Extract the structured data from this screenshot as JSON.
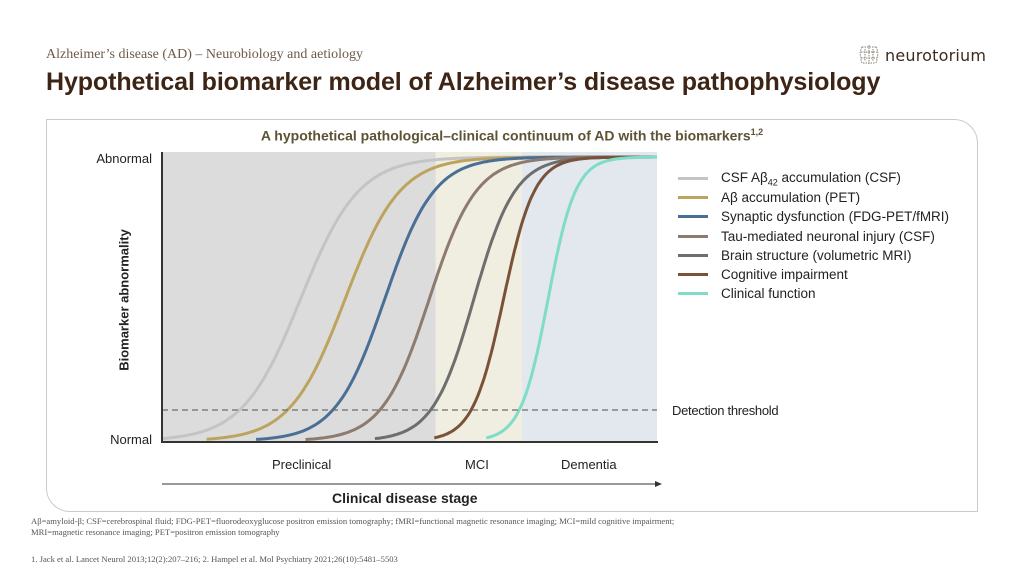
{
  "header": {
    "subtitle": "Alzheimer’s disease (AD) – Neurobiology and aetiology",
    "title": "Hypothetical biomarker model of Alzheimer’s disease pathophysiology",
    "logo_text": "neurotorium",
    "logo_icon": "brain-icon"
  },
  "chart_data": {
    "type": "line",
    "title": "A hypothetical pathological–clinical continuum of AD with the biomarkers",
    "title_superscript": "1,2",
    "xlabel": "Clinical disease stage",
    "ylabel": "Biomarker abnormality",
    "y_ticks": [
      "Normal",
      "Abnormal"
    ],
    "stages": [
      {
        "label": "Preclinical",
        "x_start": 0,
        "x_end": 0.553,
        "color": "#dcdcdc"
      },
      {
        "label": "MCI",
        "x_start": 0.553,
        "x_end": 0.727,
        "color": "#f0ede1"
      },
      {
        "label": "Dementia",
        "x_start": 0.727,
        "x_end": 1.0,
        "color": "#e3e7ee"
      }
    ],
    "threshold": {
      "label": "Detection threshold",
      "y": 0.11
    },
    "series": [
      {
        "name": "CSF Aβ42 accumulation (CSF)",
        "color": "#c4c4c4",
        "x_start": 0.0,
        "midpoint": 0.28,
        "steepness": 17
      },
      {
        "name": "Aβ accumulation (PET)",
        "color": "#bca45f",
        "x_start": 0.09,
        "midpoint": 0.37,
        "steepness": 18
      },
      {
        "name": "Synaptic dysfunction (FDG-PET/fMRI)",
        "color": "#4a6f96",
        "x_start": 0.19,
        "midpoint": 0.45,
        "steepness": 20
      },
      {
        "name": "Tau-mediated neuronal injury (CSF)",
        "color": "#8c7b6e",
        "x_start": 0.29,
        "midpoint": 0.54,
        "steepness": 21
      },
      {
        "name": "Brain structure (volumetric MRI)",
        "color": "#6e6e6e",
        "x_start": 0.43,
        "midpoint": 0.63,
        "steepness": 24
      },
      {
        "name": "Cognitive impairment",
        "color": "#7a5238",
        "x_start": 0.55,
        "midpoint": 0.69,
        "steepness": 32
      },
      {
        "name": "Clinical function",
        "color": "#7fdcc9",
        "x_start": 0.655,
        "midpoint": 0.78,
        "steepness": 36
      }
    ],
    "xlim": [
      0,
      1
    ],
    "ylim": [
      0,
      1
    ],
    "grid": false,
    "legend_position": "right"
  },
  "legend": {
    "items": [
      {
        "pre": "CSF Aβ",
        "sub": "42",
        "post": " accumulation (CSF)"
      },
      {
        "pre": "Aβ accumulation (PET)",
        "sub": "",
        "post": ""
      },
      {
        "pre": "Synaptic dysfunction (FDG-PET/fMRI)",
        "sub": "",
        "post": ""
      },
      {
        "pre": "Tau-mediated neuronal injury (CSF)",
        "sub": "",
        "post": ""
      },
      {
        "pre": "Brain structure (volumetric MRI)",
        "sub": "",
        "post": ""
      },
      {
        "pre": "Cognitive impairment",
        "sub": "",
        "post": ""
      },
      {
        "pre": "Clinical function",
        "sub": "",
        "post": ""
      }
    ]
  },
  "footnotes": {
    "abbreviations_line1": "Aβ=amyloid-β; CSF=cerebrospinal fluid; FDG-PET=fluorodeoxyglucose positron emission tomography; fMRI=functional magnetic resonance imaging;  MCI=mild cognitive impairment;",
    "abbreviations_line2": "MRI=magnetic resonance imaging;  PET=positron emission tomography",
    "references": "1. Jack et al. Lancet Neurol 2013;12(2):207–216; 2. Hampel et al. Mol Psychiatry 2021;26(10):5481–5503"
  }
}
